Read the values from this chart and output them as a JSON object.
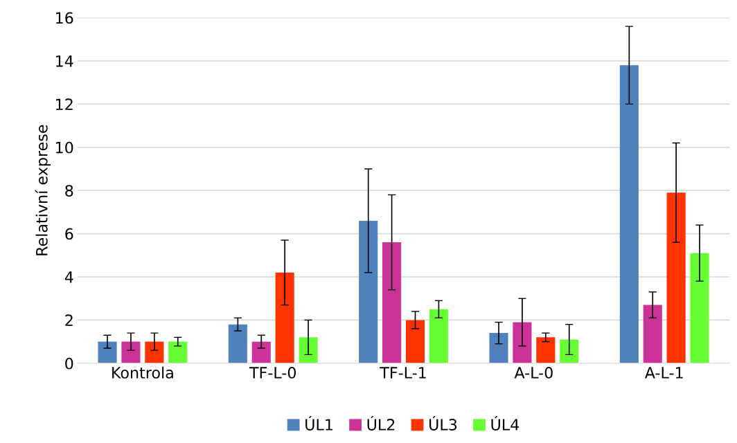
{
  "chart_data": {
    "type": "bar",
    "ylabel": "Relativní exprese",
    "categories": [
      "Kontrola",
      "TF-L-0",
      "TF-L-1",
      "A-L-0",
      "A-L-1"
    ],
    "series": [
      {
        "name": "ÚL1",
        "color": "#4f81bd",
        "values": [
          1,
          1.8,
          6.6,
          1.4,
          13.8
        ],
        "errors": [
          0.3,
          0.3,
          2.4,
          0.5,
          1.8
        ]
      },
      {
        "name": "ÚL2",
        "color": "#cc3399",
        "values": [
          1,
          1,
          5.6,
          1.9,
          2.7
        ],
        "errors": [
          0.4,
          0.3,
          2.2,
          1.1,
          0.6
        ]
      },
      {
        "name": "ÚL3",
        "color": "#ff3300",
        "values": [
          1,
          4.2,
          2,
          1.2,
          7.9
        ],
        "errors": [
          0.4,
          1.5,
          0.4,
          0.2,
          2.3
        ]
      },
      {
        "name": "ÚL4",
        "color": "#66ff33",
        "values": [
          1,
          1.2,
          2.5,
          1.1,
          5.1
        ],
        "errors": [
          0.2,
          0.8,
          0.4,
          0.7,
          1.3
        ]
      }
    ],
    "ylim": [
      0,
      16
    ],
    "yticks": [
      0,
      2,
      4,
      6,
      8,
      10,
      12,
      14,
      16
    ],
    "grid": "y",
    "legend": "bottom"
  }
}
